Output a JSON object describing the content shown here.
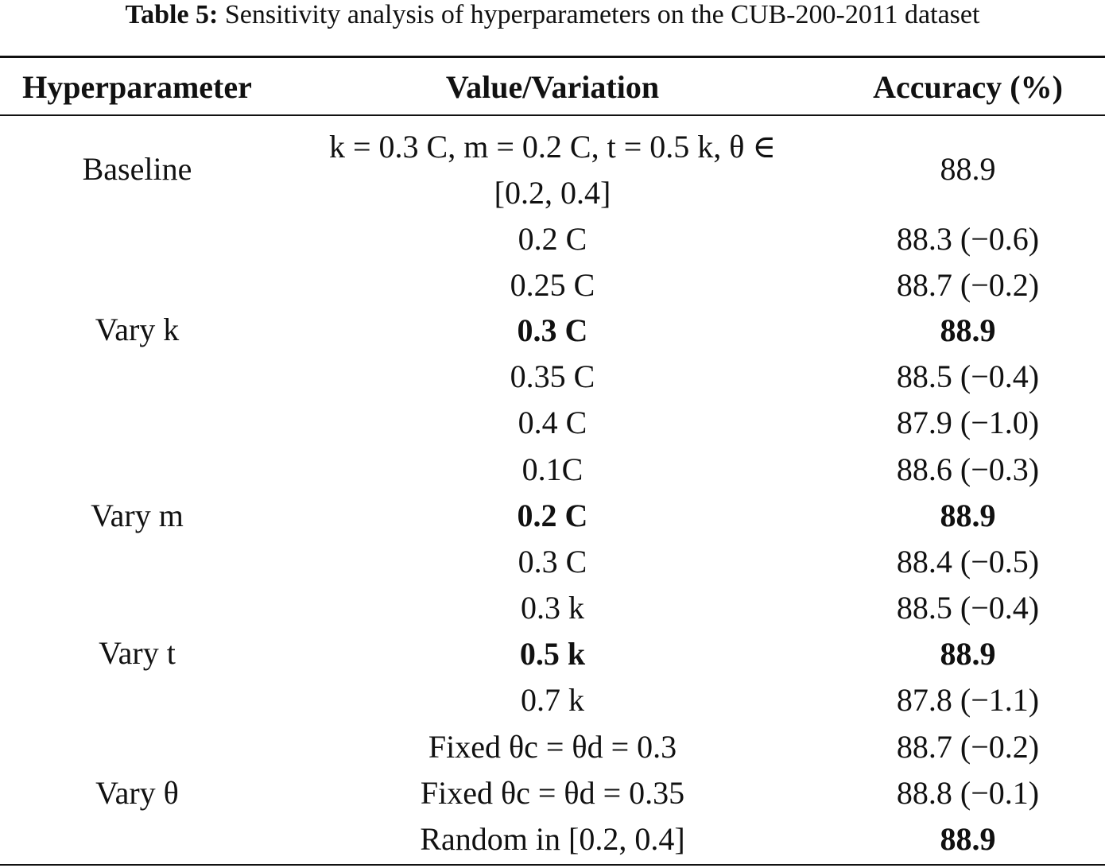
{
  "caption": {
    "label": "Table 5:",
    "text": "Sensitivity analysis of hyperparameters on the CUB-200-2011 dataset"
  },
  "headers": {
    "hyperparameter": "Hyperparameter",
    "value": "Value/Variation",
    "accuracy": "Accuracy (%)"
  },
  "groups": {
    "baseline": "Baseline",
    "vary_k": "Vary k",
    "vary_m": "Vary m",
    "vary_t": "Vary t",
    "vary_theta": "Vary θ"
  },
  "rows": [
    {
      "value_line1": "k = 0.3 C, m = 0.2 C, t = 0.5 k, θ ∈",
      "value_line2": "[0.2, 0.4]",
      "accuracy": "88.9"
    },
    {
      "value": "0.2 C",
      "accuracy": "88.3 (−0.6)"
    },
    {
      "value": "0.25 C",
      "accuracy": "88.7 (−0.2)"
    },
    {
      "value": "0.3 C",
      "accuracy": "88.9"
    },
    {
      "value": "0.35 C",
      "accuracy": "88.5 (−0.4)"
    },
    {
      "value": "0.4 C",
      "accuracy": "87.9 (−1.0)"
    },
    {
      "value": "0.1C",
      "accuracy": "88.6 (−0.3)"
    },
    {
      "value": "0.2 C",
      "accuracy": "88.9"
    },
    {
      "value": "0.3 C",
      "accuracy": "88.4 (−0.5)"
    },
    {
      "value": "0.3 k",
      "accuracy": "88.5 (−0.4)"
    },
    {
      "value": "0.5 k",
      "accuracy": "88.9"
    },
    {
      "value": "0.7 k",
      "accuracy": "87.8 (−1.1)"
    },
    {
      "value": "Fixed θc = θd = 0.3",
      "accuracy": "88.7 (−0.2)"
    },
    {
      "value": "Fixed θc = θd = 0.35",
      "accuracy": "88.8 (−0.1)"
    },
    {
      "value": "Random in [0.2, 0.4]",
      "accuracy": "88.9"
    }
  ]
}
